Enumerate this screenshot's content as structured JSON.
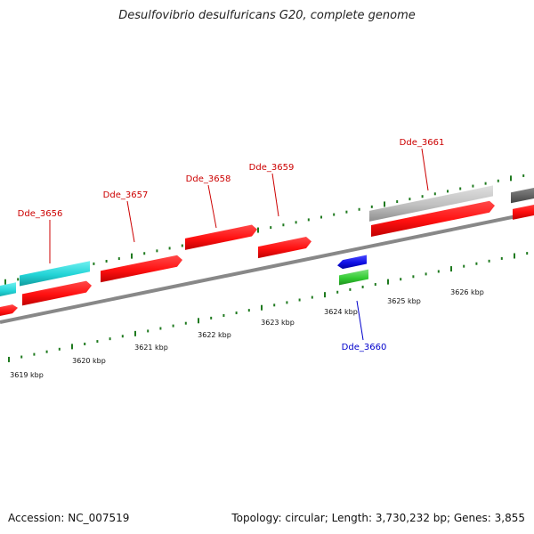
{
  "title": "Desulfovibrio desulfuricans G20, complete genome",
  "footer": {
    "accession": "Accession: NC_007519",
    "summary": "Topology: circular; Length: 3,730,232 bp; Genes: 3,855"
  },
  "colors": {
    "forward_gene": "#ff1010",
    "forward_gene_dark": "#b80000",
    "cyan_track": "#22d3d6",
    "grey_track": "#bdbdbd",
    "dark_grey_track": "#666666",
    "reverse_gene_blue": "#1010e6",
    "reverse_gene_green": "#33cc33",
    "axis": "#888888",
    "tick": "#1f7a1f",
    "label_forward": "#cc0000",
    "label_reverse": "#0000cc"
  },
  "scale": {
    "unit": "kbp",
    "labels": [
      "3619 kbp",
      "3620 kbp",
      "3621 kbp",
      "3622 kbp",
      "3623 kbp",
      "3624 kbp",
      "3625 kbp",
      "3626 kbp"
    ]
  },
  "gene_labels": [
    {
      "name": "Dde_3656",
      "strand": "forward"
    },
    {
      "name": "Dde_3657",
      "strand": "forward"
    },
    {
      "name": "Dde_3658",
      "strand": "forward"
    },
    {
      "name": "Dde_3659",
      "strand": "forward"
    },
    {
      "name": "Dde_3660",
      "strand": "reverse"
    },
    {
      "name": "Dde_3661",
      "strand": "forward"
    }
  ]
}
